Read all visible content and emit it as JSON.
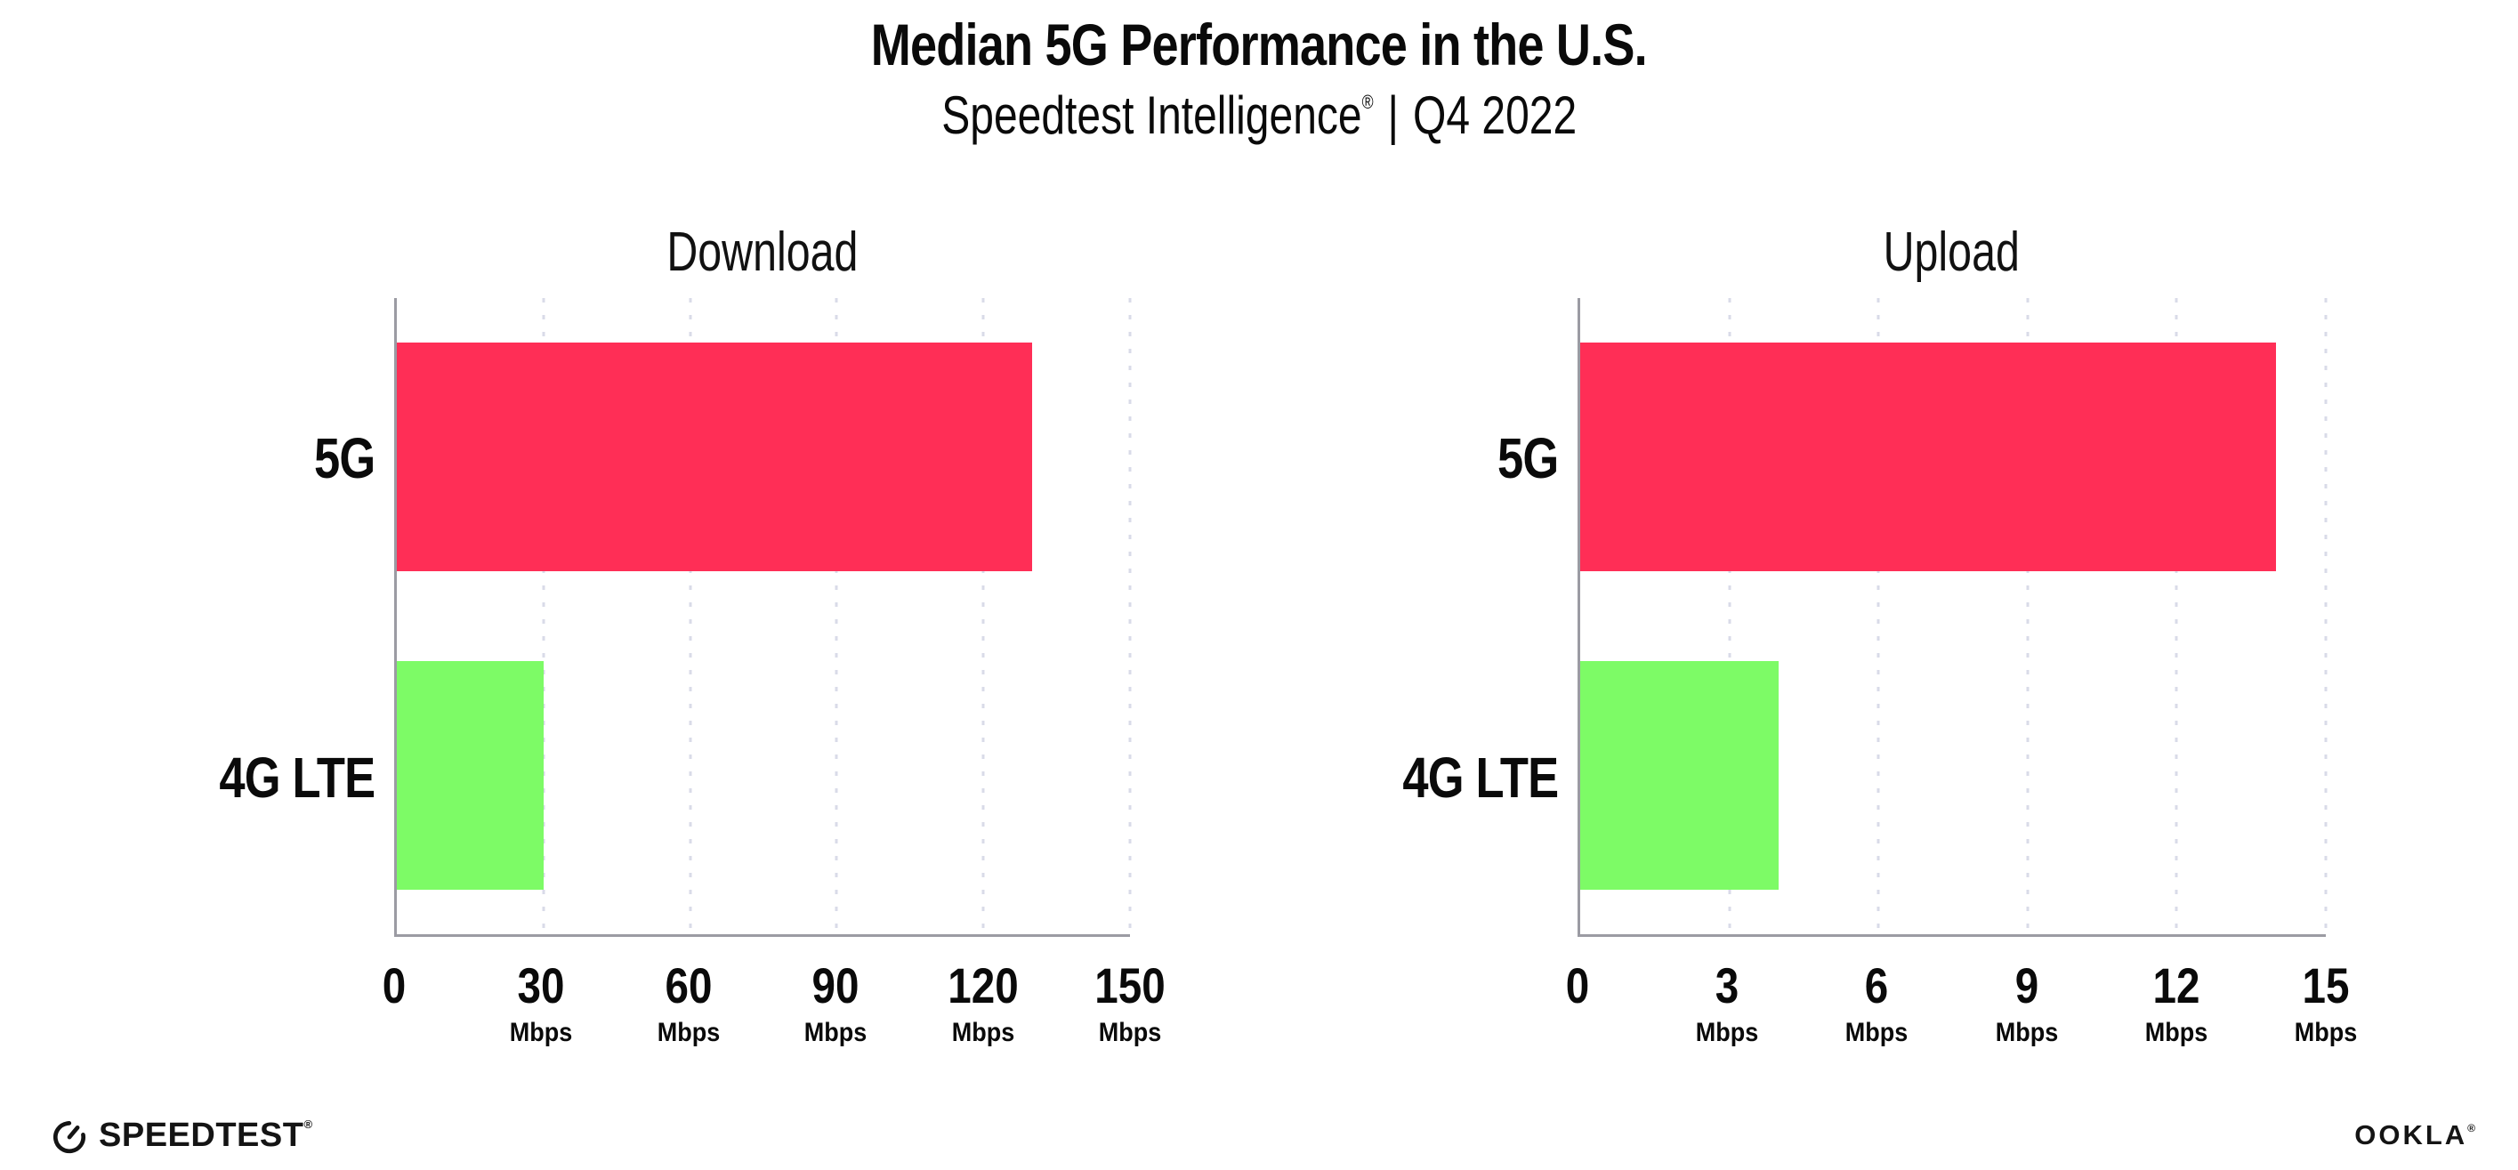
{
  "header": {
    "title": "Median 5G Performance in the U.S.",
    "subtitle_brand": "Speedtest Intelligence",
    "subtitle_registered": "®",
    "subtitle_separator": "|",
    "subtitle_period": "Q4 2022"
  },
  "chart_data": [
    {
      "type": "bar",
      "orientation": "horizontal",
      "title": "Download",
      "categories": [
        "5G",
        "4G LTE"
      ],
      "values": [
        130,
        30
      ],
      "unit": "Mbps",
      "xlabel": "",
      "xlim": [
        0,
        150
      ],
      "xticks": [
        0,
        30,
        60,
        90,
        120,
        150
      ],
      "grid": "vertical-dotted",
      "bar_colors": [
        "#FF2E56",
        "#7DFB66"
      ]
    },
    {
      "type": "bar",
      "orientation": "horizontal",
      "title": "Upload",
      "categories": [
        "5G",
        "4G LTE"
      ],
      "values": [
        14,
        4
      ],
      "unit": "Mbps",
      "xlabel": "",
      "xlim": [
        0,
        15
      ],
      "xticks": [
        0,
        3,
        6,
        9,
        12,
        15
      ],
      "grid": "vertical-dotted",
      "bar_colors": [
        "#FF2E56",
        "#7DFB66"
      ]
    }
  ],
  "colors": {
    "bar_5g": "#FF2E56",
    "bar_4g_lte": "#7DFB66",
    "axis": "#9B9BA3",
    "gridline": "#D9DBE8",
    "text": "#0A0A0A"
  },
  "footer": {
    "speedtest_icon": "gauge-icon",
    "speedtest_label": "SPEEDTEST",
    "speedtest_registered": "®",
    "ookla_label": "OOKLA",
    "ookla_registered": "®"
  }
}
